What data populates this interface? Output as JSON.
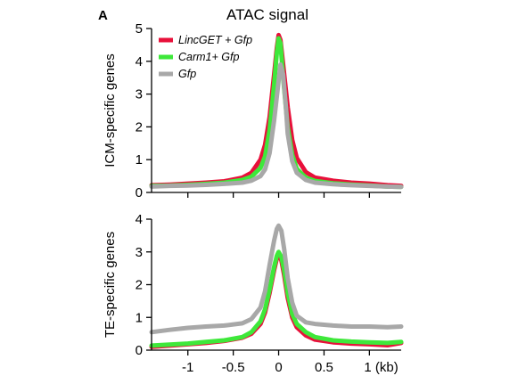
{
  "figure": {
    "panel_label": "A",
    "title": "ATAC signal"
  },
  "colors": {
    "lincget": "#e8103a",
    "carm1": "#3ee83a",
    "gfp": "#a8a8a8"
  },
  "chart_data": [
    {
      "type": "line",
      "title": "ATAC signal",
      "xlabel": "",
      "ylabel": "ICM-specific genes",
      "xlim": [
        -1.4,
        1.35
      ],
      "ylim": [
        0,
        5
      ],
      "xticks": [
        -1,
        -0.5,
        0,
        0.5,
        1
      ],
      "yticks": [
        0,
        1,
        2,
        3,
        4,
        5
      ],
      "legend": "top-left",
      "series": [
        {
          "name": "LincGET + Gfp",
          "color": "#e8103a",
          "x": [
            -1.4,
            -1.2,
            -1.0,
            -0.8,
            -0.6,
            -0.4,
            -0.3,
            -0.2,
            -0.15,
            -0.1,
            -0.05,
            -0.02,
            0.0,
            0.02,
            0.05,
            0.1,
            0.15,
            0.2,
            0.3,
            0.4,
            0.6,
            0.8,
            1.0,
            1.2,
            1.35
          ],
          "y": [
            0.22,
            0.24,
            0.27,
            0.3,
            0.34,
            0.45,
            0.6,
            1.0,
            1.45,
            2.3,
            3.6,
            4.4,
            4.8,
            4.65,
            3.9,
            2.6,
            1.6,
            1.05,
            0.62,
            0.45,
            0.36,
            0.3,
            0.27,
            0.22,
            0.2
          ]
        },
        {
          "name": "Carm1+ Gfp",
          "color": "#3ee83a",
          "x": [
            -1.4,
            -1.2,
            -1.0,
            -0.8,
            -0.6,
            -0.4,
            -0.3,
            -0.2,
            -0.15,
            -0.1,
            -0.05,
            -0.02,
            0.0,
            0.02,
            0.05,
            0.1,
            0.15,
            0.2,
            0.3,
            0.4,
            0.6,
            0.8,
            1.0,
            1.2,
            1.35
          ],
          "y": [
            0.2,
            0.21,
            0.23,
            0.26,
            0.3,
            0.38,
            0.48,
            0.75,
            1.1,
            1.9,
            3.3,
            4.25,
            4.7,
            4.55,
            3.5,
            2.0,
            1.15,
            0.72,
            0.45,
            0.35,
            0.28,
            0.24,
            0.21,
            0.18,
            0.17
          ]
        },
        {
          "name": "Gfp",
          "color": "#a8a8a8",
          "x": [
            -1.4,
            -1.2,
            -1.0,
            -0.8,
            -0.6,
            -0.4,
            -0.3,
            -0.2,
            -0.15,
            -0.1,
            -0.05,
            0.0,
            0.02,
            0.05,
            0.08,
            0.1,
            0.15,
            0.2,
            0.3,
            0.4,
            0.6,
            0.8,
            1.0,
            1.2,
            1.35
          ],
          "y": [
            0.18,
            0.2,
            0.21,
            0.23,
            0.26,
            0.3,
            0.36,
            0.5,
            0.7,
            1.2,
            2.2,
            3.4,
            3.9,
            3.6,
            2.6,
            1.8,
            0.95,
            0.6,
            0.38,
            0.3,
            0.25,
            0.22,
            0.2,
            0.18,
            0.17
          ]
        }
      ]
    },
    {
      "type": "line",
      "title": "",
      "xlabel": "",
      "ylabel": "TE-specific genes",
      "xlim": [
        -1.4,
        1.35
      ],
      "ylim": [
        0,
        4
      ],
      "xticks": [
        -1,
        -0.5,
        0,
        0.5,
        1
      ],
      "xticklabels": [
        "-1",
        "-0.5",
        "0",
        "0.5",
        "1 (kb)"
      ],
      "yticks": [
        0,
        1,
        2,
        3,
        4
      ],
      "series": [
        {
          "name": "LincGET + Gfp",
          "color": "#e8103a",
          "x": [
            -1.4,
            -1.2,
            -1.0,
            -0.8,
            -0.6,
            -0.4,
            -0.3,
            -0.2,
            -0.15,
            -0.1,
            -0.05,
            -0.02,
            0.0,
            0.03,
            0.06,
            0.1,
            0.15,
            0.2,
            0.3,
            0.4,
            0.6,
            0.8,
            1.0,
            1.2,
            1.35
          ],
          "y": [
            0.1,
            0.14,
            0.18,
            0.22,
            0.28,
            0.38,
            0.5,
            0.8,
            1.15,
            1.75,
            2.45,
            2.8,
            2.9,
            2.75,
            2.3,
            1.6,
            1.0,
            0.7,
            0.45,
            0.32,
            0.24,
            0.2,
            0.18,
            0.15,
            0.22
          ]
        },
        {
          "name": "Carm1+ Gfp",
          "color": "#3ee83a",
          "x": [
            -1.4,
            -1.2,
            -1.0,
            -0.8,
            -0.6,
            -0.4,
            -0.3,
            -0.2,
            -0.15,
            -0.1,
            -0.05,
            -0.02,
            0.0,
            0.03,
            0.06,
            0.1,
            0.15,
            0.2,
            0.3,
            0.4,
            0.6,
            0.8,
            1.0,
            1.2,
            1.35
          ],
          "y": [
            0.14,
            0.17,
            0.2,
            0.25,
            0.3,
            0.4,
            0.55,
            0.88,
            1.25,
            1.85,
            2.55,
            2.88,
            3.0,
            2.85,
            2.45,
            1.75,
            1.1,
            0.8,
            0.55,
            0.4,
            0.3,
            0.26,
            0.24,
            0.22,
            0.25
          ]
        },
        {
          "name": "Gfp",
          "color": "#a8a8a8",
          "x": [
            -1.4,
            -1.2,
            -1.0,
            -0.8,
            -0.6,
            -0.4,
            -0.3,
            -0.2,
            -0.15,
            -0.1,
            -0.05,
            -0.02,
            0.0,
            0.03,
            0.06,
            0.1,
            0.15,
            0.2,
            0.3,
            0.4,
            0.6,
            0.8,
            1.0,
            1.2,
            1.35
          ],
          "y": [
            0.55,
            0.62,
            0.68,
            0.72,
            0.75,
            0.82,
            0.95,
            1.3,
            1.8,
            2.6,
            3.35,
            3.7,
            3.8,
            3.65,
            3.1,
            2.2,
            1.45,
            1.05,
            0.85,
            0.8,
            0.75,
            0.72,
            0.72,
            0.7,
            0.72
          ]
        }
      ]
    }
  ]
}
